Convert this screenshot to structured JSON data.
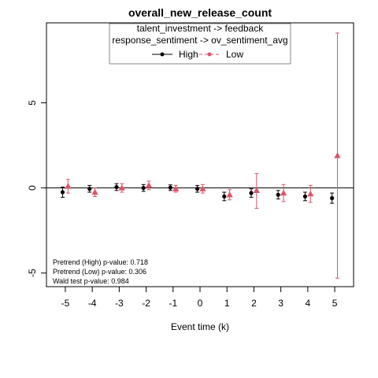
{
  "chart_data": {
    "type": "scatter",
    "title": "overall_new_release_count",
    "xlabel": "Event time (k)",
    "ylabel": "",
    "x": [
      -5,
      -4,
      -3,
      -2,
      -1,
      0,
      1,
      2,
      3,
      4,
      5
    ],
    "xlim": [
      -5.7,
      5.7
    ],
    "ylim": [
      -5.8,
      9.7
    ],
    "x_ticks": [
      -5,
      -4,
      -3,
      -2,
      -1,
      0,
      1,
      2,
      3,
      4,
      5
    ],
    "y_ticks": [
      -5,
      0,
      5
    ],
    "reference_line": 0,
    "legend": {
      "placement": "top",
      "title_lines": [
        "talent_investment -> feedback",
        "response_sentiment -> ov_sentiment_avg"
      ],
      "entries": [
        "High",
        "Low"
      ]
    },
    "series": [
      {
        "name": "High",
        "color": "#000000",
        "marker": "circle",
        "line_style": "solid",
        "offset": -0.1,
        "values": [
          -0.25,
          -0.05,
          0.05,
          0.0,
          0.02,
          -0.05,
          -0.5,
          -0.3,
          -0.4,
          -0.5,
          -0.6
        ],
        "lower": [
          -0.55,
          -0.25,
          -0.15,
          -0.2,
          -0.15,
          -0.25,
          -0.75,
          -0.55,
          -0.65,
          -0.75,
          -0.9
        ],
        "upper": [
          0.05,
          0.15,
          0.25,
          0.2,
          0.18,
          0.15,
          -0.25,
          -0.05,
          -0.15,
          -0.25,
          -0.3
        ]
      },
      {
        "name": "Low",
        "color": "#DF536B",
        "marker": "triangle",
        "line_style": "dashed",
        "offset": 0.1,
        "values": [
          0.1,
          -0.25,
          0.0,
          0.15,
          -0.05,
          -0.05,
          -0.4,
          -0.15,
          -0.3,
          -0.35,
          1.9
        ],
        "lower": [
          -0.3,
          -0.5,
          -0.25,
          -0.1,
          -0.25,
          -0.3,
          -0.7,
          -1.2,
          -0.8,
          -0.85,
          -5.3
        ],
        "upper": [
          0.5,
          0.0,
          0.25,
          0.4,
          0.15,
          0.2,
          -0.1,
          0.85,
          0.2,
          0.15,
          9.1
        ]
      }
    ],
    "annotations": [
      "Pretrend (High) p-value: 0.718",
      "Pretrend (Low) p-value: 0.306",
      "Wald test p-value: 0.984"
    ]
  }
}
